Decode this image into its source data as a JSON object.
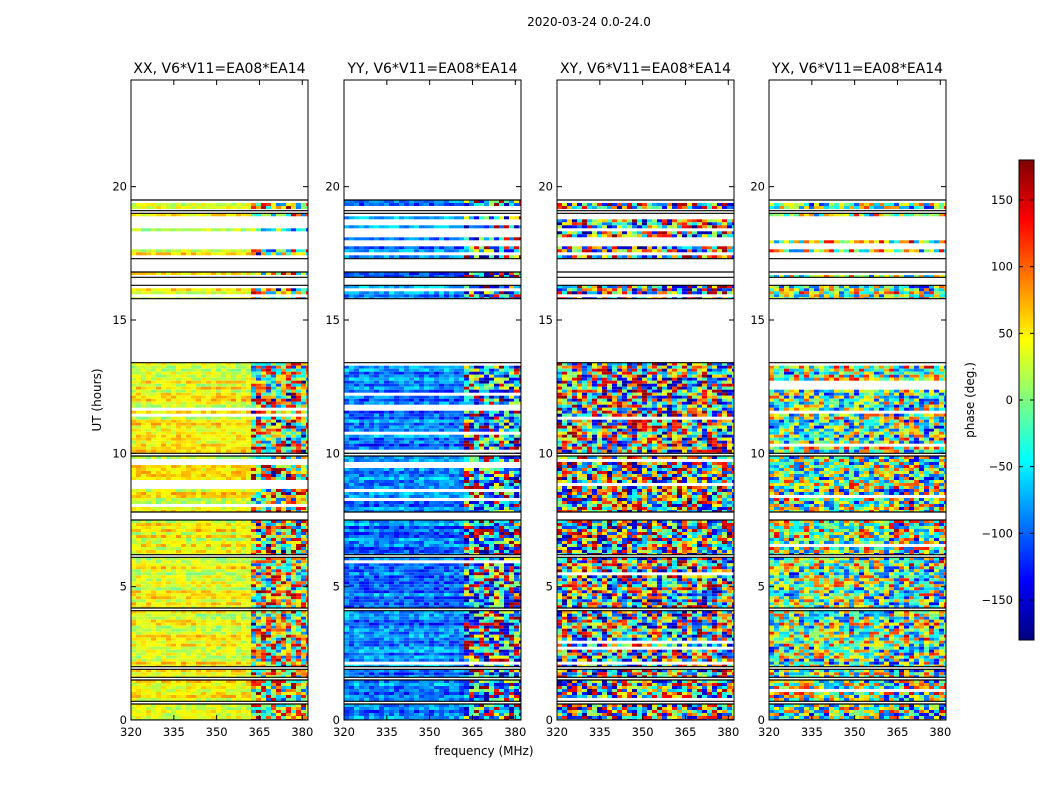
{
  "chart_data": {
    "type": "heatmap",
    "suptitle": "2020-03-24 0.0-24.0",
    "xlabel": "frequency (MHz)",
    "ylabel": "UT (hours)",
    "xlim": [
      320,
      382
    ],
    "ylim": [
      0,
      24
    ],
    "x_ticks": [
      320,
      335,
      350,
      365,
      380
    ],
    "y_ticks": [
      0,
      5,
      10,
      15,
      20
    ],
    "colorbar": {
      "label": "phase (deg.)",
      "range": [
        -180,
        180
      ],
      "ticks": [
        -150,
        -100,
        -50,
        0,
        50,
        100,
        150
      ],
      "tick_labels": [
        "−150",
        "−100",
        "−50",
        "0",
        "50",
        "100",
        "150"
      ],
      "colormap": "jet",
      "colors": [
        "#00007f",
        "#0000ff",
        "#007fff",
        "#00ffff",
        "#7fff7f",
        "#ffff00",
        "#ff7f00",
        "#ff0000",
        "#7f0000"
      ]
    },
    "rfi_band_start_mhz": 361,
    "panels": [
      {
        "title": "XX, V6*V11=EA08*EA14",
        "pol": "XX",
        "base_phase_deg": 40,
        "scatter_deg": 25
      },
      {
        "title": "YY, V6*V11=EA08*EA14",
        "pol": "YY",
        "base_phase_deg": -90,
        "scatter_deg": 30
      },
      {
        "title": "XY, V6*V11=EA08*EA14",
        "pol": "XY",
        "base_phase_deg": 0,
        "scatter_deg": 180
      },
      {
        "title": "YX, V6*V11=EA08*EA14",
        "pol": "YX",
        "base_phase_deg": 0,
        "scatter_deg": 120
      }
    ],
    "data_bands_ut": [
      {
        "from": 0.0,
        "to": 0.6,
        "fill": 1.0
      },
      {
        "from": 0.7,
        "to": 1.5,
        "fill": 0.95
      },
      {
        "from": 1.6,
        "to": 1.9,
        "fill": 0.9
      },
      {
        "from": 2.0,
        "to": 4.1,
        "fill": 0.95
      },
      {
        "from": 4.2,
        "to": 6.1,
        "fill": 0.95
      },
      {
        "from": 6.2,
        "to": 7.5,
        "fill": 0.95
      },
      {
        "from": 7.8,
        "to": 9.9,
        "fill": 0.85
      },
      {
        "from": 10.0,
        "to": 13.4,
        "fill": 0.85
      },
      {
        "from": 15.8,
        "to": 16.3,
        "fill": 0.6
      },
      {
        "from": 16.6,
        "to": 16.8,
        "fill": 0.4
      },
      {
        "from": 17.3,
        "to": 19.0,
        "fill": 0.25
      },
      {
        "from": 19.1,
        "to": 19.5,
        "fill": 0.7
      }
    ]
  }
}
